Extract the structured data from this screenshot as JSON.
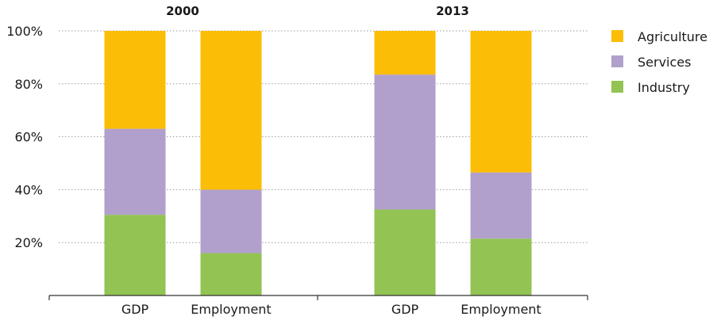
{
  "chart_data": {
    "type": "bar",
    "stacked": true,
    "groups": [
      {
        "title": "2000",
        "categories": [
          "GDP",
          "Employment"
        ]
      },
      {
        "title": "2013",
        "categories": [
          "GDP",
          "Employment"
        ]
      }
    ],
    "series": [
      {
        "name": "Industry",
        "color": "#92c353",
        "values": [
          30.5,
          16,
          32.5,
          21.5
        ]
      },
      {
        "name": "Services",
        "color": "#b1a0cb",
        "values": [
          32.5,
          24,
          51,
          25
        ]
      },
      {
        "name": "Agriculture",
        "color": "#fbbd06",
        "values": [
          37,
          60,
          16.5,
          53.5
        ]
      }
    ],
    "y_ticks": [
      "20%",
      "40%",
      "60%",
      "80%",
      "100%"
    ],
    "ylim": [
      0,
      100
    ],
    "grid": "dotted horizontal",
    "legend_position": "right",
    "legend_order": [
      "Agriculture",
      "Services",
      "Industry"
    ]
  }
}
